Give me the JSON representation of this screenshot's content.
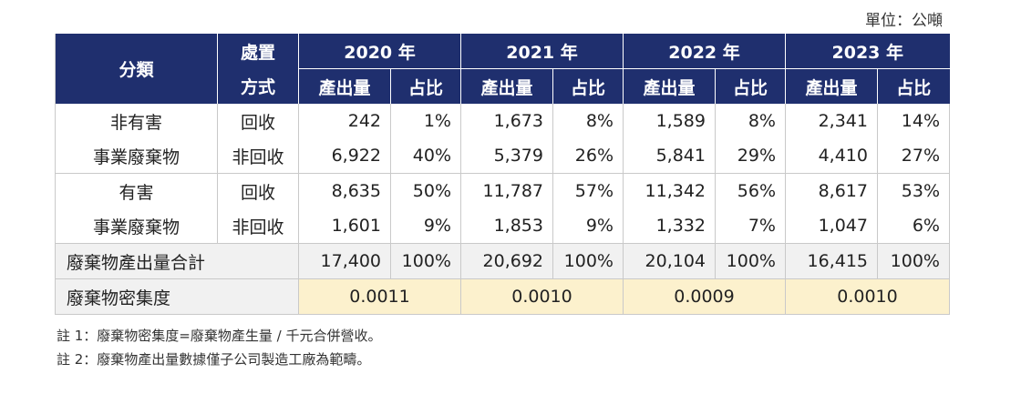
{
  "unit_label": "單位：公噸",
  "header": {
    "category": "分類",
    "method_line1": "處置",
    "method_line2": "方式",
    "years": [
      "2020 年",
      "2021 年",
      "2022 年",
      "2023 年"
    ],
    "sub_amount": "產出量",
    "sub_ratio": "占比"
  },
  "groups": [
    {
      "name_line1": "非有害",
      "name_line2": "事業廢棄物",
      "rows": [
        {
          "method": "回收",
          "values": [
            "242",
            "1%",
            "1,673",
            "8%",
            "1,589",
            "8%",
            "2,341",
            "14%"
          ]
        },
        {
          "method": "非回收",
          "values": [
            "6,922",
            "40%",
            "5,379",
            "26%",
            "5,841",
            "29%",
            "4,410",
            "27%"
          ]
        }
      ]
    },
    {
      "name_line1": "有害",
      "name_line2": "事業廢棄物",
      "rows": [
        {
          "method": "回收",
          "values": [
            "8,635",
            "50%",
            "11,787",
            "57%",
            "11,342",
            "56%",
            "8,617",
            "53%"
          ]
        },
        {
          "method": "非回收",
          "values": [
            "1,601",
            "9%",
            "1,853",
            "9%",
            "1,332",
            "7%",
            "1,047",
            "6%"
          ]
        }
      ]
    }
  ],
  "total": {
    "label": "廢棄物產出量合計",
    "values": [
      "17,400",
      "100%",
      "20,692",
      "100%",
      "20,104",
      "100%",
      "16,415",
      "100%"
    ]
  },
  "density": {
    "label": "廢棄物密集度",
    "values": [
      "0.0011",
      "0.0010",
      "0.0009",
      "0.0010"
    ]
  },
  "notes": [
    "註 1：廢棄物密集度=廢棄物產生量 / 千元合併營收。",
    "註 2：廢棄物產出量數據僅子公司製造工廠為範疇。"
  ]
}
